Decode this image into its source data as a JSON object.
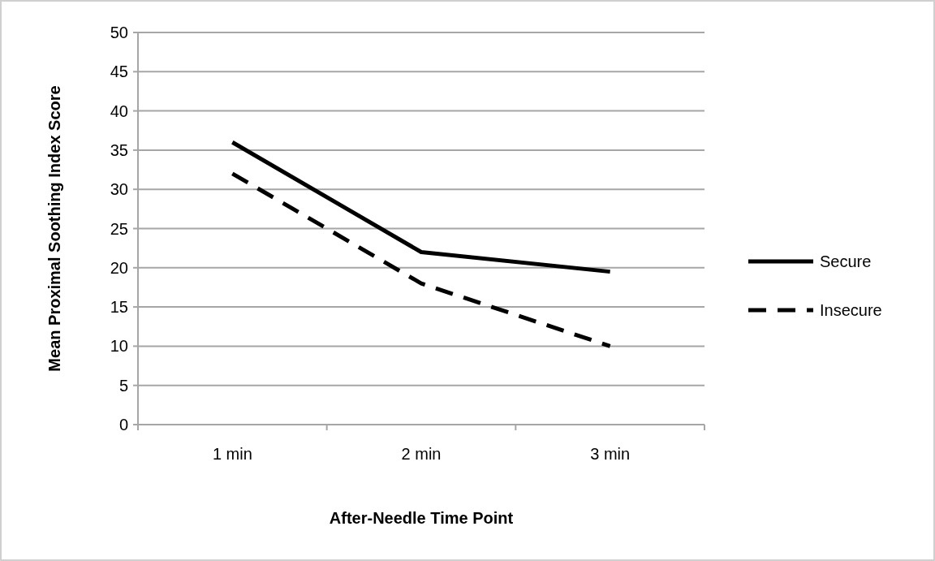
{
  "chart_data": {
    "type": "line",
    "xlabel": "After-Needle Time Point",
    "ylabel": "Mean Proximal Soothing Index Score",
    "categories": [
      "1 min",
      "2 min",
      "3 min"
    ],
    "series": [
      {
        "name": "Secure",
        "color": "#000000",
        "line_style": "solid",
        "values": [
          36,
          22,
          19.5
        ]
      },
      {
        "name": "Insecure",
        "color": "#000000",
        "line_style": "dashed",
        "values": [
          32,
          18,
          10
        ]
      }
    ],
    "ylim": [
      0,
      50
    ],
    "yticks": [
      0,
      5,
      10,
      15,
      20,
      25,
      30,
      35,
      40,
      45,
      50
    ],
    "grid": "y",
    "legend": "right",
    "marker": "none"
  }
}
